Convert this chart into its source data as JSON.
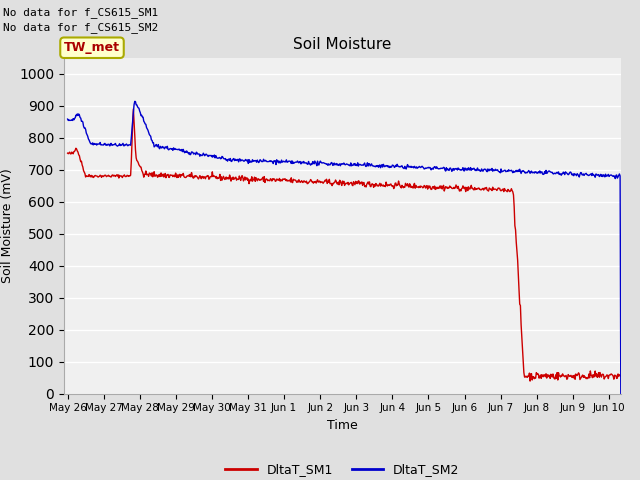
{
  "title": "Soil Moisture",
  "xlabel": "Time",
  "ylabel": "Soil Moisture (mV)",
  "ylim": [
    0,
    1050
  ],
  "yticks": [
    0,
    100,
    200,
    300,
    400,
    500,
    600,
    700,
    800,
    900,
    1000
  ],
  "text_no_data_1": "No data for f_CS615_SM1",
  "text_no_data_2": "No data for f_CS615_SM2",
  "annotation_box": "TW_met",
  "bg_color": "#e0e0e0",
  "plot_bg_color": "#f0f0f0",
  "sm1_color": "#cc0000",
  "sm2_color": "#0000cc",
  "legend_sm1": "DltaT_SM1",
  "legend_sm2": "DltaT_SM2"
}
